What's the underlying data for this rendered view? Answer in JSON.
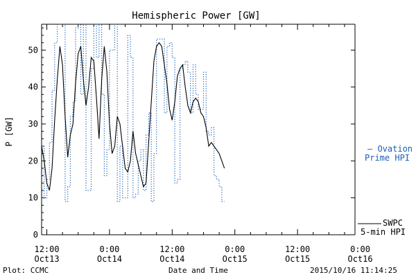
{
  "chart_data": {
    "type": "line",
    "title": "Hemispheric Power [GW]",
    "xlabel": "Date and Time",
    "ylabel": "P [GW]",
    "ylim": [
      0,
      57
    ],
    "yticks": [
      0,
      10,
      20,
      30,
      40,
      50
    ],
    "xlim_hours": [
      -13,
      47
    ],
    "xticks": [
      {
        "hour": -12,
        "time": "12:00",
        "date": "Oct13"
      },
      {
        "hour": 0,
        "time": "0:00",
        "date": "Oct14"
      },
      {
        "hour": 12,
        "time": "12:00",
        "date": "Oct14"
      },
      {
        "hour": 24,
        "time": "0:00",
        "date": "Oct15"
      },
      {
        "hour": 36,
        "time": "12:00",
        "date": "Oct15"
      },
      {
        "hour": 48,
        "time": "0:00",
        "date": "Oct16"
      }
    ],
    "x_units": "hours relative to 2015-10-14 00:00",
    "series": [
      {
        "name": "Ovation Prime HPI",
        "legend_label": [
          "— Ovation",
          "Prime HPI"
        ],
        "color": "#1a5fb4",
        "style": "dotted-step",
        "points": [
          [
            -13.0,
            24
          ],
          [
            -12.5,
            10
          ],
          [
            -12.0,
            15
          ],
          [
            -11.5,
            25
          ],
          [
            -11.0,
            39
          ],
          [
            -10.5,
            52
          ],
          [
            -10.0,
            57
          ],
          [
            -9.0,
            57
          ],
          [
            -8.5,
            9
          ],
          [
            -8.0,
            13
          ],
          [
            -7.5,
            32
          ],
          [
            -7.0,
            36
          ],
          [
            -6.5,
            56
          ],
          [
            -6.0,
            57
          ],
          [
            -5.5,
            38
          ],
          [
            -5.0,
            57
          ],
          [
            -4.5,
            12
          ],
          [
            -4.0,
            12
          ],
          [
            -3.5,
            45
          ],
          [
            -3.0,
            57
          ],
          [
            -2.5,
            48
          ],
          [
            -2.0,
            57
          ],
          [
            -1.5,
            38
          ],
          [
            -1.0,
            16
          ],
          [
            -0.5,
            23
          ],
          [
            0.0,
            50
          ],
          [
            0.5,
            50
          ],
          [
            1.0,
            57
          ],
          [
            1.5,
            9
          ],
          [
            2.0,
            24
          ],
          [
            2.5,
            10
          ],
          [
            3.0,
            10
          ],
          [
            3.5,
            54
          ],
          [
            4.0,
            48
          ],
          [
            4.5,
            10
          ],
          [
            5.0,
            11
          ],
          [
            5.5,
            20
          ],
          [
            6.0,
            23
          ],
          [
            6.5,
            12
          ],
          [
            7.0,
            27
          ],
          [
            7.5,
            33
          ],
          [
            8.0,
            9
          ],
          [
            8.5,
            22
          ],
          [
            9.0,
            53
          ],
          [
            10.0,
            53
          ],
          [
            10.5,
            33
          ],
          [
            11.0,
            51
          ],
          [
            11.5,
            52
          ],
          [
            12.0,
            48
          ],
          [
            12.5,
            14
          ],
          [
            13.0,
            15
          ],
          [
            13.5,
            45
          ],
          [
            14.0,
            46
          ],
          [
            14.5,
            47
          ],
          [
            15.0,
            44
          ],
          [
            15.5,
            33
          ],
          [
            16.0,
            46
          ],
          [
            16.5,
            38
          ],
          [
            17.0,
            34
          ],
          [
            17.5,
            34
          ],
          [
            18.0,
            44
          ],
          [
            18.5,
            28
          ],
          [
            19.0,
            27
          ],
          [
            19.5,
            29
          ],
          [
            20.0,
            16
          ],
          [
            20.5,
            15
          ],
          [
            21.0,
            13
          ],
          [
            21.5,
            9
          ],
          [
            22.0,
            9
          ]
        ]
      },
      {
        "name": "SWPC 5-min HPI",
        "legend_label": [
          "SWPC",
          "5-min HPI"
        ],
        "color": "#000000",
        "style": "solid",
        "points": [
          [
            -13.0,
            24
          ],
          [
            -12.5,
            20
          ],
          [
            -12.0,
            14
          ],
          [
            -11.5,
            12
          ],
          [
            -11.0,
            18
          ],
          [
            -10.5,
            31
          ],
          [
            -10.0,
            42
          ],
          [
            -9.5,
            51
          ],
          [
            -9.0,
            46
          ],
          [
            -8.5,
            32
          ],
          [
            -8.0,
            21
          ],
          [
            -7.5,
            27
          ],
          [
            -7.0,
            30
          ],
          [
            -6.5,
            41
          ],
          [
            -6.0,
            49
          ],
          [
            -5.5,
            51
          ],
          [
            -5.0,
            42
          ],
          [
            -4.5,
            35
          ],
          [
            -4.0,
            40
          ],
          [
            -3.5,
            48
          ],
          [
            -3.0,
            47
          ],
          [
            -2.5,
            37
          ],
          [
            -2.0,
            26
          ],
          [
            -1.5,
            42
          ],
          [
            -1.0,
            51
          ],
          [
            -0.5,
            44
          ],
          [
            0.0,
            30
          ],
          [
            0.5,
            22
          ],
          [
            1.0,
            24
          ],
          [
            1.5,
            32
          ],
          [
            2.0,
            30
          ],
          [
            2.5,
            24
          ],
          [
            3.0,
            18
          ],
          [
            3.5,
            17
          ],
          [
            4.0,
            20
          ],
          [
            4.5,
            28
          ],
          [
            5.0,
            22
          ],
          [
            5.5,
            19
          ],
          [
            6.0,
            16
          ],
          [
            6.5,
            13
          ],
          [
            7.0,
            14
          ],
          [
            7.5,
            25
          ],
          [
            8.0,
            36
          ],
          [
            8.5,
            47
          ],
          [
            9.0,
            51
          ],
          [
            9.5,
            52
          ],
          [
            10.0,
            51
          ],
          [
            10.5,
            46
          ],
          [
            11.0,
            41
          ],
          [
            11.5,
            34
          ],
          [
            12.0,
            31
          ],
          [
            12.5,
            36
          ],
          [
            13.0,
            43
          ],
          [
            13.5,
            45
          ],
          [
            14.0,
            46
          ],
          [
            14.5,
            40
          ],
          [
            15.0,
            35
          ],
          [
            15.5,
            33
          ],
          [
            16.0,
            36
          ],
          [
            16.5,
            37
          ],
          [
            17.0,
            36
          ],
          [
            17.5,
            33
          ],
          [
            18.0,
            32
          ],
          [
            18.5,
            29
          ],
          [
            19.0,
            24
          ],
          [
            19.5,
            25
          ],
          [
            20.0,
            24
          ],
          [
            20.5,
            23
          ],
          [
            21.0,
            22
          ],
          [
            21.5,
            20
          ],
          [
            22.0,
            18
          ]
        ]
      }
    ],
    "footer": {
      "left": "Plot: CCMC",
      "right": "2015/10/16 11:14:25"
    }
  }
}
